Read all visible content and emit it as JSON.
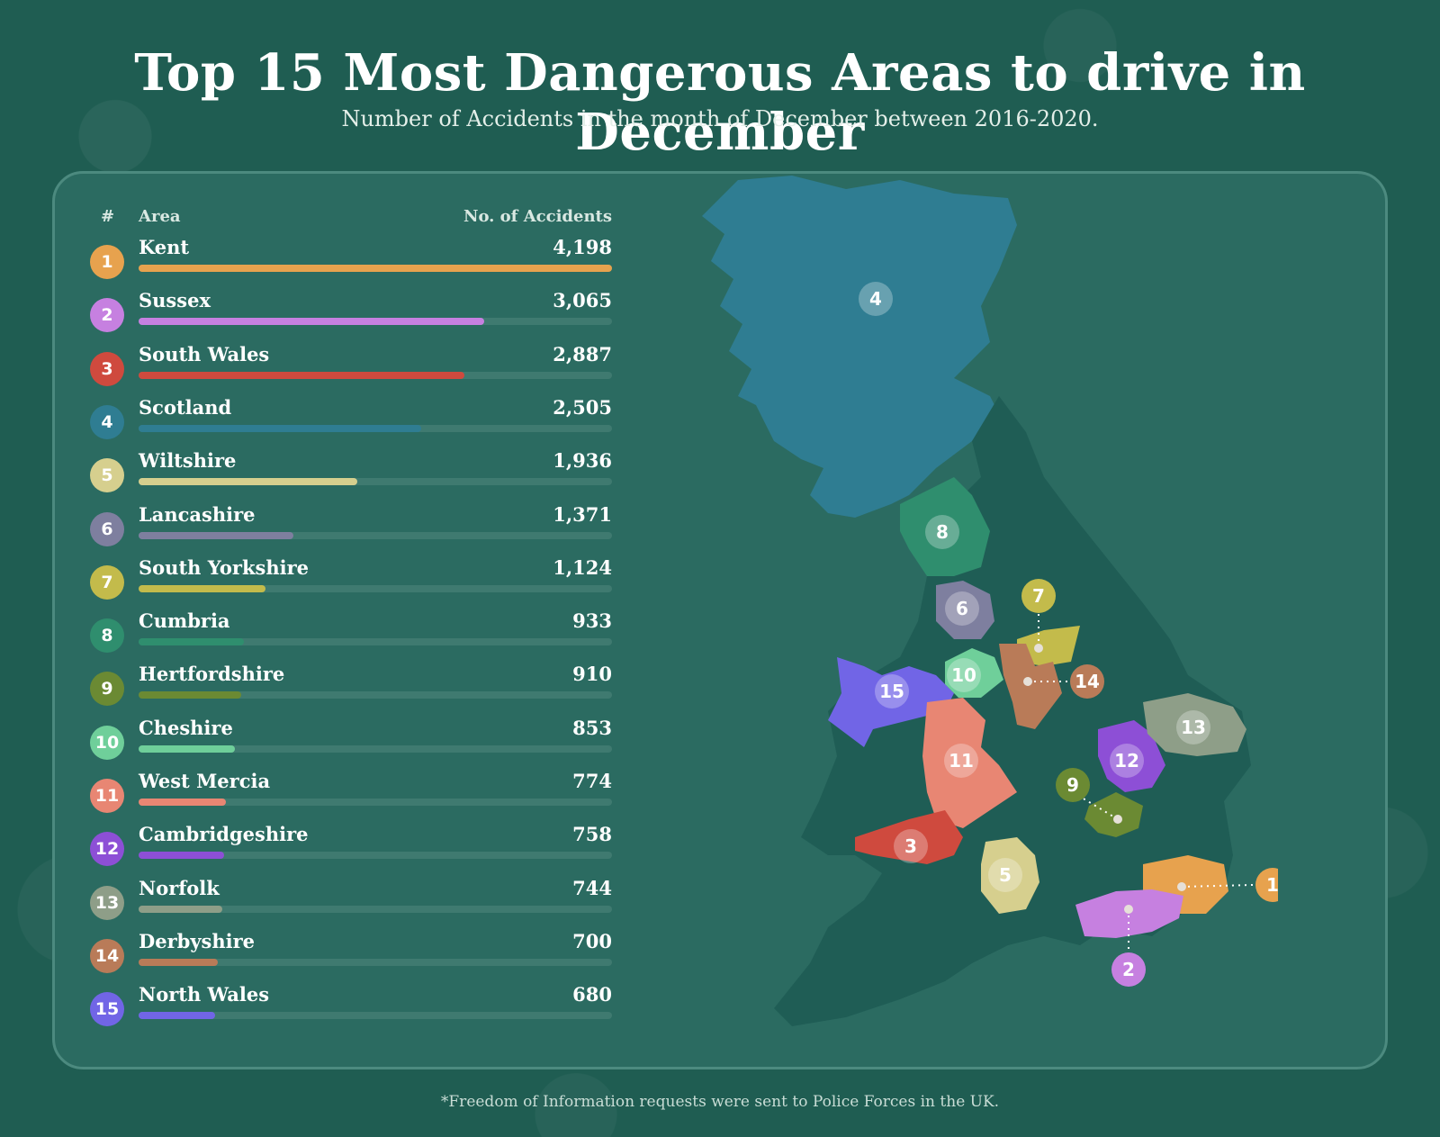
{
  "title": "Top 15 Most Dangerous Areas to drive in December",
  "subtitle": "Number of Accidents in the month of December between 2016-2020.",
  "table": {
    "rank_header": "#",
    "area_header": "Area",
    "value_header": "No. of Accidents"
  },
  "footnote": "*Freedom of Information requests were sent to Police Forces in the UK.",
  "chart_data": {
    "type": "bar",
    "categories": [
      "Kent",
      "Sussex",
      "South Wales",
      "Scotland",
      "Wiltshire",
      "Lancashire",
      "South Yorkshire",
      "Cumbria",
      "Hertfordshire",
      "Cheshire",
      "West Mercia",
      "Cambridgeshire",
      "Norfolk",
      "Derbyshire",
      "North Wales"
    ],
    "values": [
      4198,
      3065,
      2887,
      2505,
      1936,
      1371,
      1124,
      933,
      910,
      853,
      774,
      758,
      744,
      700,
      680
    ],
    "value_labels": [
      "4,198",
      "3,065",
      "2,887",
      "2,505",
      "1,936",
      "1,371",
      "1,124",
      "933",
      "910",
      "853",
      "774",
      "758",
      "744",
      "700",
      "680"
    ],
    "ranks": [
      "1",
      "2",
      "3",
      "4",
      "5",
      "6",
      "7",
      "8",
      "9",
      "10",
      "11",
      "12",
      "13",
      "14",
      "15"
    ],
    "colors": [
      "#e7a24e",
      "#c680e0",
      "#cf4a3e",
      "#2f7d92",
      "#d6cf8e",
      "#7e7f9f",
      "#c3bb4b",
      "#2f8e6e",
      "#6b8a33",
      "#6fcf9a",
      "#e88673",
      "#8d4fd6",
      "#8e9e88",
      "#b97b58",
      "#7165e6"
    ],
    "orientation": "horizontal",
    "xlim": [
      0,
      4198
    ],
    "legend": "none"
  }
}
